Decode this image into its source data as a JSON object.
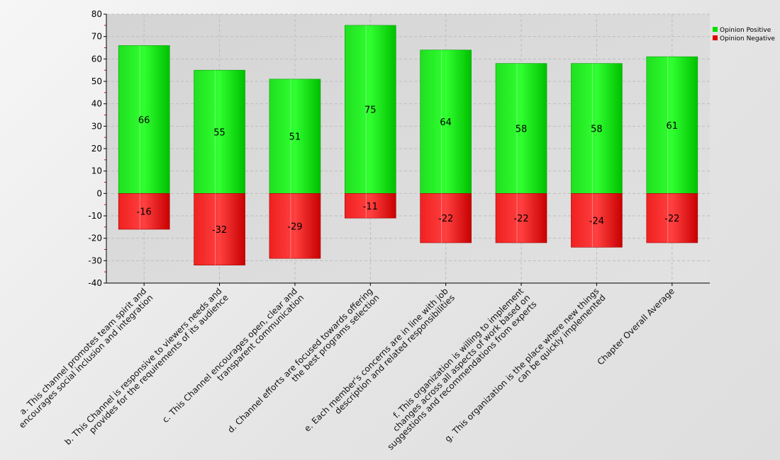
{
  "chart_data": {
    "type": "bar",
    "stacked": true,
    "title": "",
    "xlabel": "",
    "ylabel": "",
    "ylim": [
      -40,
      80
    ],
    "yticks": [
      -40,
      -30,
      -20,
      -10,
      0,
      10,
      20,
      30,
      40,
      50,
      60,
      70,
      80
    ],
    "grid": true,
    "legend_position": "top-right",
    "categories": [
      [
        "a. This channel promotes team spirit and",
        "encourages social inclusion and integration"
      ],
      [
        "b. This Channel is responsive to viewers needs and",
        "provides for the requirements of its audience"
      ],
      [
        "c. This Channel encourages open, clear and",
        "transparent communication"
      ],
      [
        "d. Channel efforts are focused towards offering",
        "the best programs selection"
      ],
      [
        "e. Each member's concerns are in line with job",
        "description and related responsibilities"
      ],
      [
        "f. This organization  is willing to implement",
        "changes across all aspects of work based on",
        "suggestions and recommendations from experts"
      ],
      [
        "g. This organization is the place where new things",
        "can be quickly implemented"
      ],
      [
        "Chapter Overall Average"
      ]
    ],
    "series": [
      {
        "name": "Opinion Positive",
        "color": "#00e000",
        "values": [
          66,
          55,
          51,
          75,
          64,
          58,
          58,
          61
        ]
      },
      {
        "name": "Opinion Negative",
        "color": "#e00000",
        "values": [
          -16,
          -32,
          -29,
          -11,
          -22,
          -22,
          -24,
          -22
        ]
      }
    ]
  }
}
